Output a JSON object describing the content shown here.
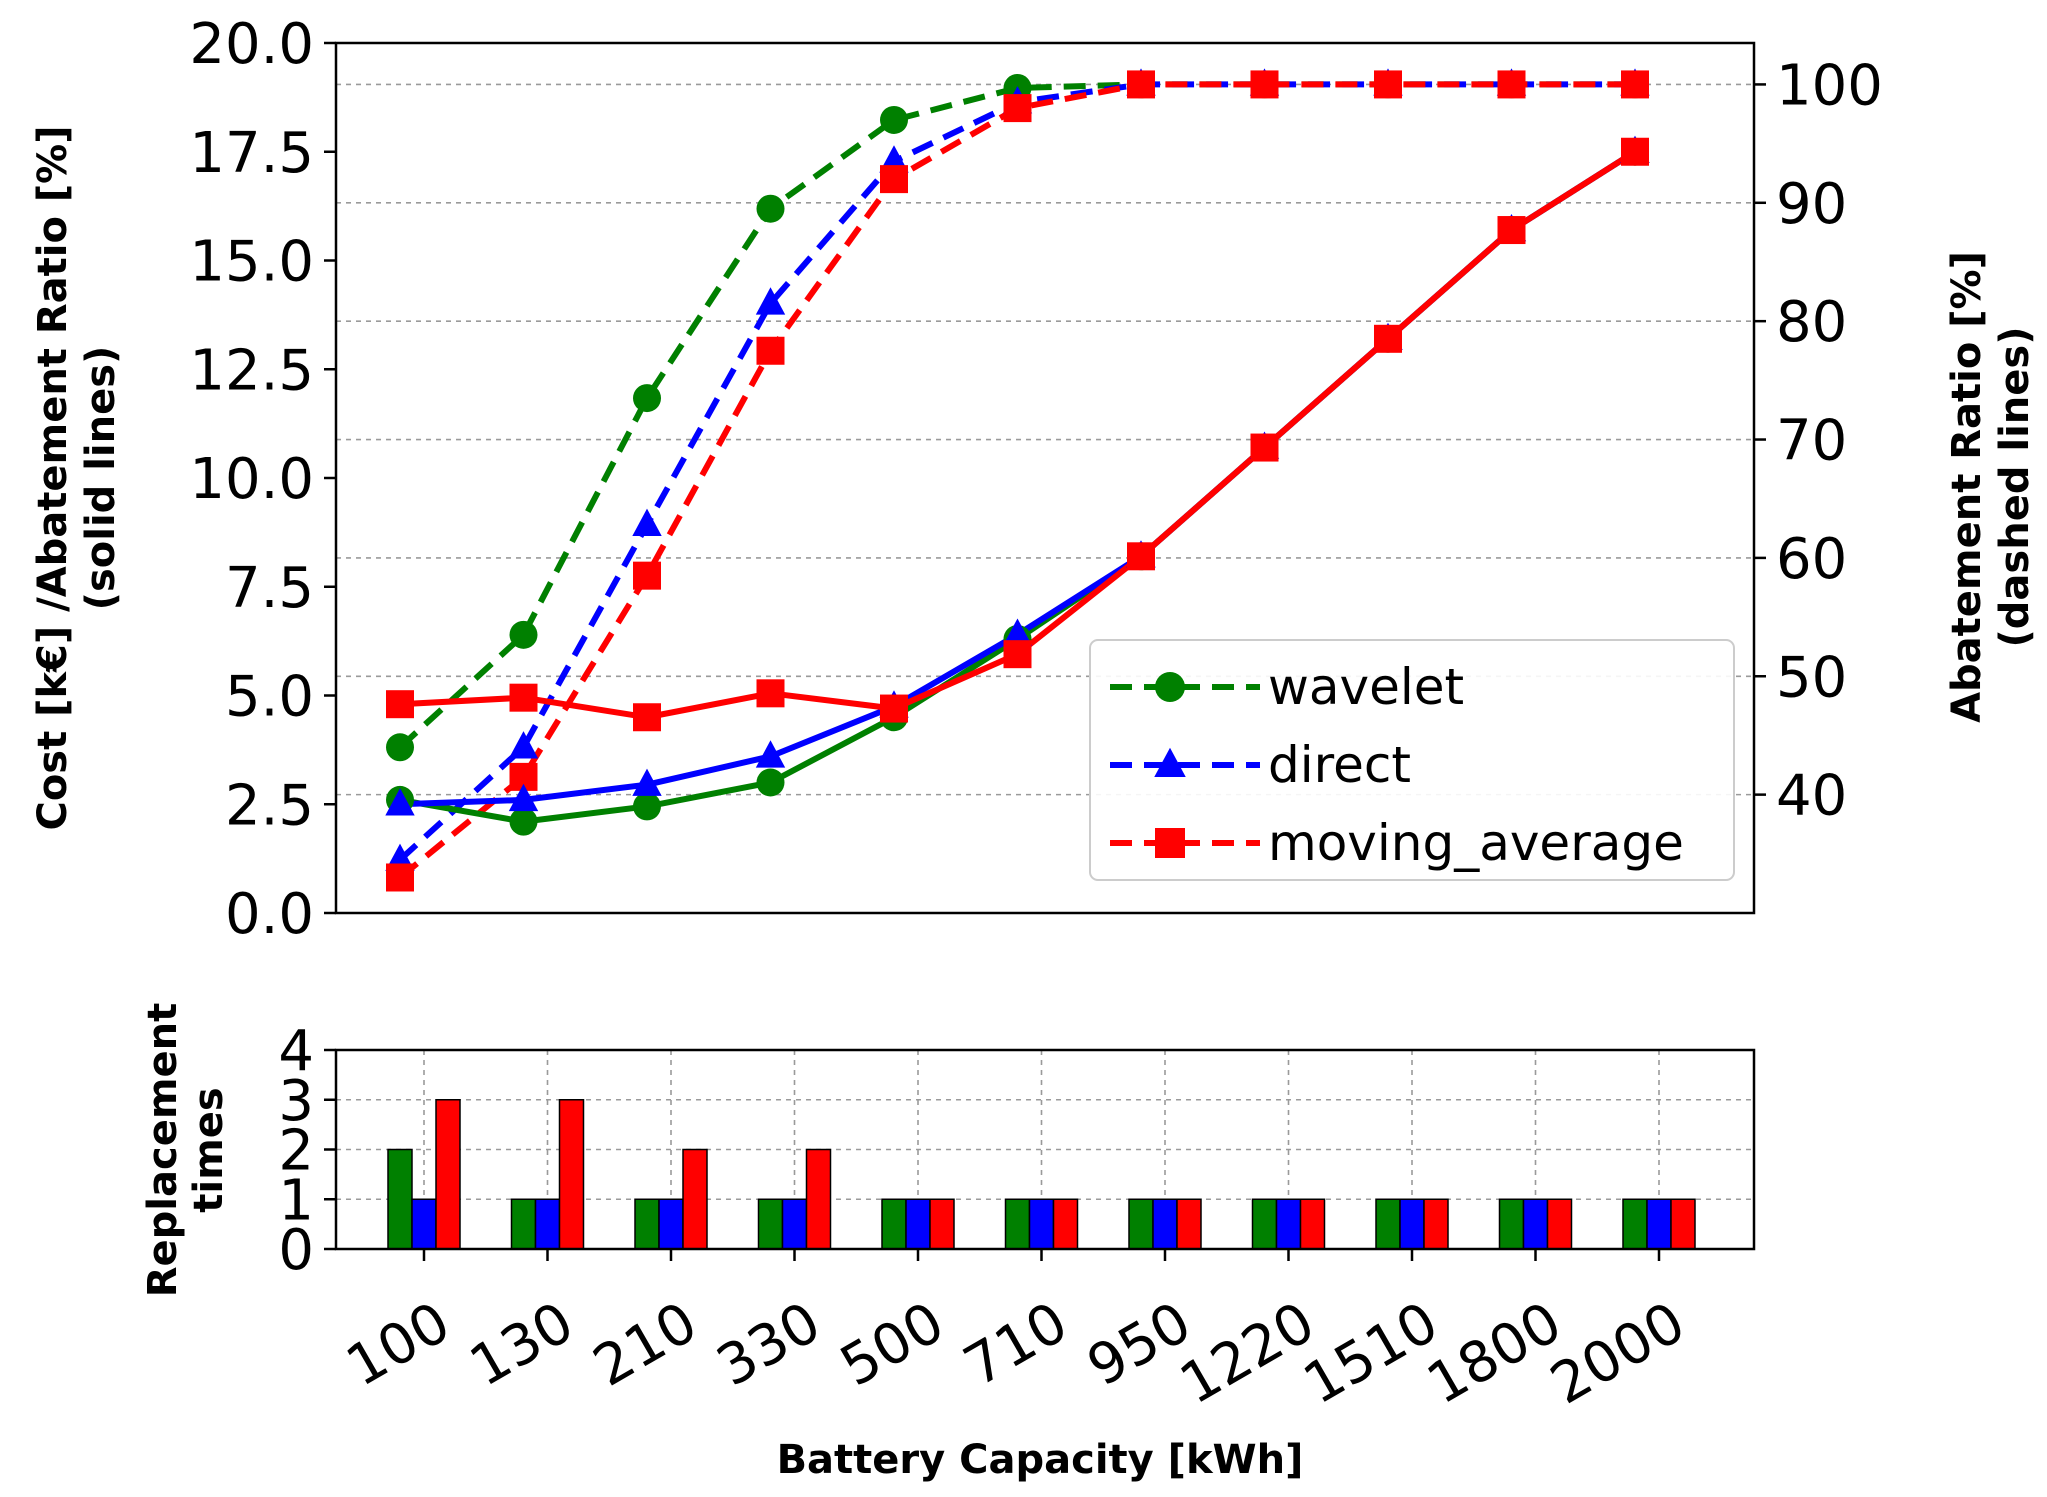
{
  "chart_data": [
    {
      "type": "line",
      "title": "",
      "x_categories": [
        "100",
        "130",
        "210",
        "330",
        "500",
        "710",
        "950",
        "1220",
        "1510",
        "1800",
        "2000"
      ],
      "ylabel_left": "Cost [k€] /Abatement Ratio [%]",
      "ylabel_left_sub": "(solid lines)",
      "ylabel_right": "Abatement Ratio [%]",
      "ylabel_right_sub": "(dashed lines)",
      "ylim_left": [
        0,
        20
      ],
      "ylim_right": [
        30,
        103.5
      ],
      "yticks_left": [
        "0.0",
        "2.5",
        "5.0",
        "7.5",
        "10.0",
        "12.5",
        "15.0",
        "17.5",
        "20.0"
      ],
      "yticks_right": [
        "40",
        "50",
        "60",
        "70",
        "80",
        "90",
        "100"
      ],
      "grid": "horizontal",
      "legend": {
        "position": "center-right",
        "entries": [
          "wavelet",
          "direct",
          "moving_average"
        ]
      },
      "series_solid": [
        {
          "name": "wavelet",
          "color": "#008000",
          "marker": "circle",
          "values": [
            2.6,
            2.1,
            2.45,
            3.0,
            4.5,
            6.3,
            8.2,
            10.7,
            13.2,
            15.7,
            17.5
          ]
        },
        {
          "name": "direct",
          "color": "#0000ff",
          "marker": "triangle",
          "values": [
            2.5,
            2.6,
            2.95,
            3.6,
            4.75,
            6.4,
            8.2,
            10.7,
            13.2,
            15.7,
            17.5
          ]
        },
        {
          "name": "moving_average",
          "color": "#ff0000",
          "marker": "square",
          "values": [
            4.8,
            4.95,
            4.5,
            5.05,
            4.7,
            5.95,
            8.2,
            10.7,
            13.2,
            15.7,
            17.5
          ]
        }
      ],
      "series_dashed": [
        {
          "name": "wavelet",
          "color": "#008000",
          "marker": "circle",
          "values": [
            44,
            53.5,
            73.5,
            89.5,
            97,
            99.7,
            100,
            100,
            100,
            100,
            100
          ]
        },
        {
          "name": "direct",
          "color": "#0000ff",
          "marker": "triangle",
          "values": [
            34.5,
            44,
            62.8,
            81.5,
            93.5,
            98.5,
            100,
            100,
            100,
            100,
            100
          ]
        },
        {
          "name": "moving_average",
          "color": "#ff0000",
          "marker": "square",
          "values": [
            33,
            41.5,
            58.5,
            77.5,
            92,
            98,
            100,
            100,
            100,
            100,
            100
          ]
        }
      ]
    },
    {
      "type": "bar",
      "categories": [
        "100",
        "130",
        "210",
        "330",
        "500",
        "710",
        "950",
        "1220",
        "1510",
        "1800",
        "2000"
      ],
      "xlabel": "Battery Capacity [kWh]",
      "ylabel": "Replacement",
      "ylabel_sub": "times",
      "ylim": [
        0,
        4
      ],
      "yticks": [
        "0",
        "1",
        "2",
        "3",
        "4"
      ],
      "grid": "both",
      "series": [
        {
          "name": "wavelet",
          "color": "#008000",
          "values": [
            2,
            1,
            1,
            1,
            1,
            1,
            1,
            1,
            1,
            1,
            1
          ]
        },
        {
          "name": "direct",
          "color": "#0000ff",
          "values": [
            1,
            1,
            1,
            1,
            1,
            1,
            1,
            1,
            1,
            1,
            1
          ]
        },
        {
          "name": "moving_average",
          "color": "#ff0000",
          "values": [
            3,
            3,
            2,
            2,
            1,
            1,
            1,
            1,
            1,
            1,
            1
          ]
        }
      ]
    }
  ]
}
